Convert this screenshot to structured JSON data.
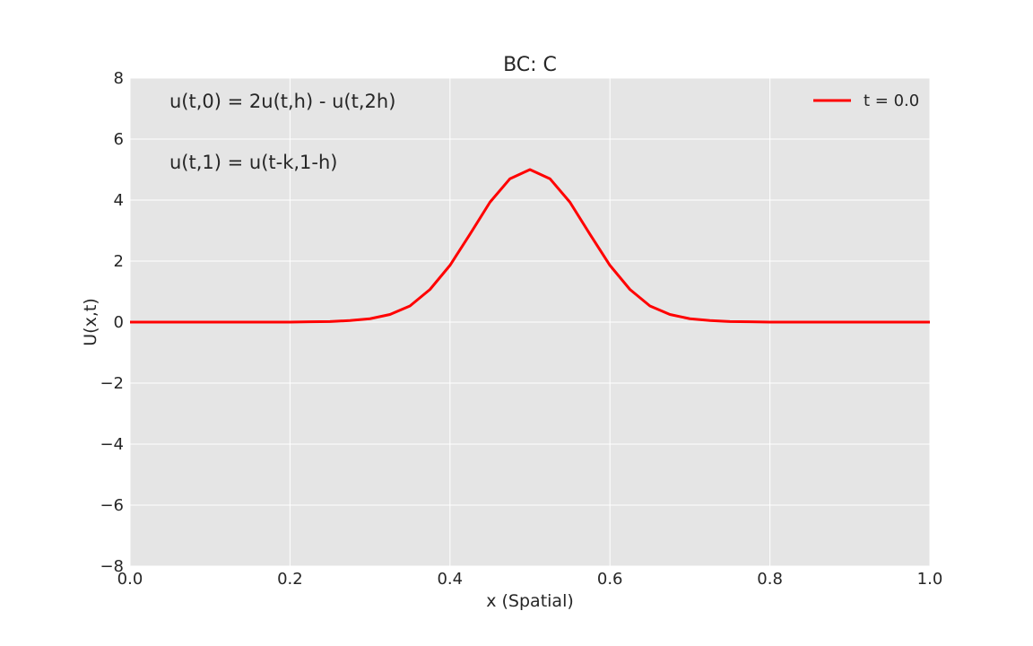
{
  "chart_data": {
    "type": "line",
    "title": "BC: C",
    "xlabel": "x (Spatial)",
    "ylabel": "U(x,t)",
    "xlim": [
      0.0,
      1.0
    ],
    "ylim": [
      -8,
      8
    ],
    "xticks": [
      0.0,
      0.2,
      0.4,
      0.6,
      0.8,
      1.0
    ],
    "xtick_labels": [
      "0.0",
      "0.2",
      "0.4",
      "0.6",
      "0.8",
      "1.0"
    ],
    "yticks": [
      -8,
      -6,
      -4,
      -2,
      0,
      2,
      4,
      6,
      8
    ],
    "ytick_labels": [
      "−8",
      "−6",
      "−4",
      "−2",
      "0",
      "2",
      "4",
      "6",
      "8"
    ],
    "grid": true,
    "legend_position": "top-right",
    "annotations": [
      "u(t,0) = 2u(t,h) - u(t,2h)",
      "u(t,1) = u(t-k,1-h)"
    ],
    "series": [
      {
        "name": "t = 0.0",
        "color": "#ff0000",
        "x": [
          0.0,
          0.025,
          0.05,
          0.075,
          0.1,
          0.125,
          0.15,
          0.175,
          0.2,
          0.225,
          0.25,
          0.275,
          0.3,
          0.325,
          0.35,
          0.375,
          0.4,
          0.425,
          0.45,
          0.475,
          0.5,
          0.525,
          0.55,
          0.575,
          0.6,
          0.625,
          0.65,
          0.675,
          0.7,
          0.725,
          0.75,
          0.775,
          0.8,
          0.825,
          0.85,
          0.875,
          0.9,
          0.925,
          0.95,
          0.975,
          1.0
        ],
        "y": [
          0.0,
          0.0,
          0.0,
          0.0,
          0.0,
          0.0,
          0.0,
          0.0,
          0.0,
          0.01,
          0.02,
          0.05,
          0.11,
          0.25,
          0.53,
          1.07,
          1.86,
          2.88,
          3.93,
          4.7,
          5.0,
          4.7,
          3.93,
          2.88,
          1.86,
          1.07,
          0.53,
          0.25,
          0.11,
          0.05,
          0.02,
          0.01,
          0.0,
          0.0,
          0.0,
          0.0,
          0.0,
          0.0,
          0.0,
          0.0,
          0.0
        ]
      }
    ]
  }
}
